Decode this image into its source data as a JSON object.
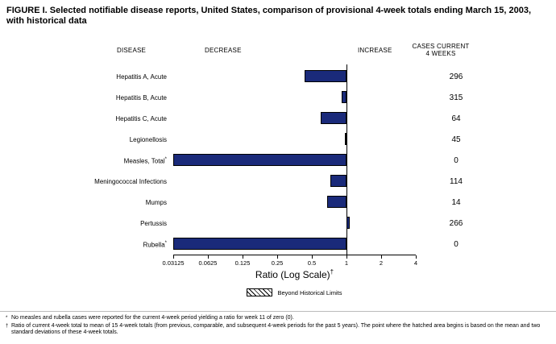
{
  "title": "FIGURE I. Selected notifiable disease reports, United States, comparison of provisional 4-week totals ending March 15, 2003, with historical data",
  "headers": {
    "disease": "DISEASE",
    "decrease": "DECREASE",
    "increase": "INCREASE",
    "cases_line1": "CASES CURRENT",
    "cases_line2": "4 WEEKS"
  },
  "chart_data": {
    "type": "bar",
    "orientation": "horizontal",
    "scale": "log2",
    "baseline": 1,
    "xlabel": "Ratio (Log Scale)",
    "xlabel_sup": "†",
    "xlim": [
      0.03125,
      4
    ],
    "ticks": [
      0.03125,
      0.0625,
      0.125,
      0.25,
      0.5,
      1,
      2,
      4
    ],
    "tick_labels": [
      "0.03125",
      "0.0625",
      "0.125",
      "0.25",
      "0.5",
      "1",
      "2",
      "4"
    ],
    "bar_color": "#1a2a7a",
    "rows": [
      {
        "disease": "Hepatitis A, Acute",
        "flag": "",
        "ratio": 0.43,
        "beyond_limit": false,
        "cases": 296
      },
      {
        "disease": "Hepatitis B, Acute",
        "flag": "",
        "ratio": 0.91,
        "beyond_limit": false,
        "cases": 315
      },
      {
        "disease": "Hepatitis C, Acute",
        "flag": "",
        "ratio": 0.6,
        "beyond_limit": false,
        "cases": 64
      },
      {
        "disease": "Legionellosis",
        "flag": "",
        "ratio": 0.97,
        "beyond_limit": false,
        "cases": 45
      },
      {
        "disease": "Measles, Total",
        "flag": "*",
        "ratio": 0,
        "beyond_limit": true,
        "cases": 0
      },
      {
        "disease": "Meningococcal Infections",
        "flag": "",
        "ratio": 0.73,
        "beyond_limit": false,
        "cases": 114
      },
      {
        "disease": "Mumps",
        "flag": "",
        "ratio": 0.68,
        "beyond_limit": false,
        "cases": 14
      },
      {
        "disease": "Pertussis",
        "flag": "",
        "ratio": 1.07,
        "beyond_limit": false,
        "cases": 266
      },
      {
        "disease": "Rubella",
        "flag": "*",
        "ratio": 0,
        "beyond_limit": true,
        "cases": 0
      }
    ]
  },
  "legend": {
    "label": "Beyond Historical Limits",
    "swatch": "hatched"
  },
  "footnotes": [
    {
      "marker": "*",
      "text": "No measles and rubella cases were reported for the current 4-week period yielding a ratio for week 11 of zero (0)."
    },
    {
      "marker": "†",
      "text": "Ratio of current 4-week total to mean of 15 4-week totals (from previous, comparable, and subsequent 4-week periods for the past 5 years). The point where the hatched area begins is based on the mean and two standard deviations of these 4-week totals."
    }
  ]
}
